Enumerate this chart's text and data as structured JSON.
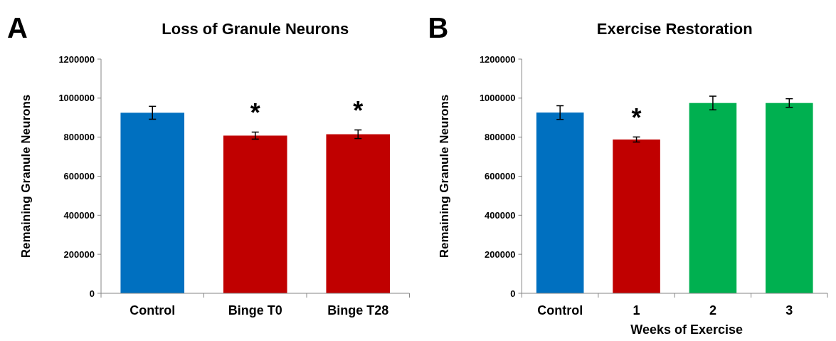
{
  "chart_data": [
    {
      "type": "bar",
      "title": "Loss of Granule Neurons",
      "ylabel": "Remaining Granule Neurons",
      "categories": [
        "Control",
        "Binge T0",
        "Binge T28"
      ],
      "values": [
        925000,
        808000,
        815000
      ],
      "colors": [
        "#0070c0",
        "#c00000",
        "#c00000"
      ],
      "errors": [
        33000,
        18000,
        22000
      ],
      "ylim": [
        0,
        1200000
      ],
      "yticks": [
        0,
        200000,
        400000,
        600000,
        800000,
        1000000,
        1200000
      ],
      "grid": false,
      "value_labels": [
        null,
        "*",
        "*"
      ],
      "annotations": [
        "A"
      ]
    },
    {
      "type": "bar",
      "title": "Exercise Restoration",
      "xlabel": "Weeks of Exercise",
      "ylabel": "Remaining Granule Neurons",
      "categories": [
        "Control",
        "1",
        "2",
        "3"
      ],
      "values": [
        926000,
        788000,
        975000,
        975000
      ],
      "colors": [
        "#0070c0",
        "#c00000",
        "#00b050",
        "#00b050"
      ],
      "errors": [
        35000,
        13000,
        35000,
        22000
      ],
      "ylim": [
        0,
        1200000
      ],
      "yticks": [
        0,
        200000,
        400000,
        600000,
        800000,
        1000000,
        1200000
      ],
      "grid": false,
      "value_labels": [
        null,
        "*",
        null,
        null
      ],
      "annotations": [
        "B"
      ]
    }
  ]
}
